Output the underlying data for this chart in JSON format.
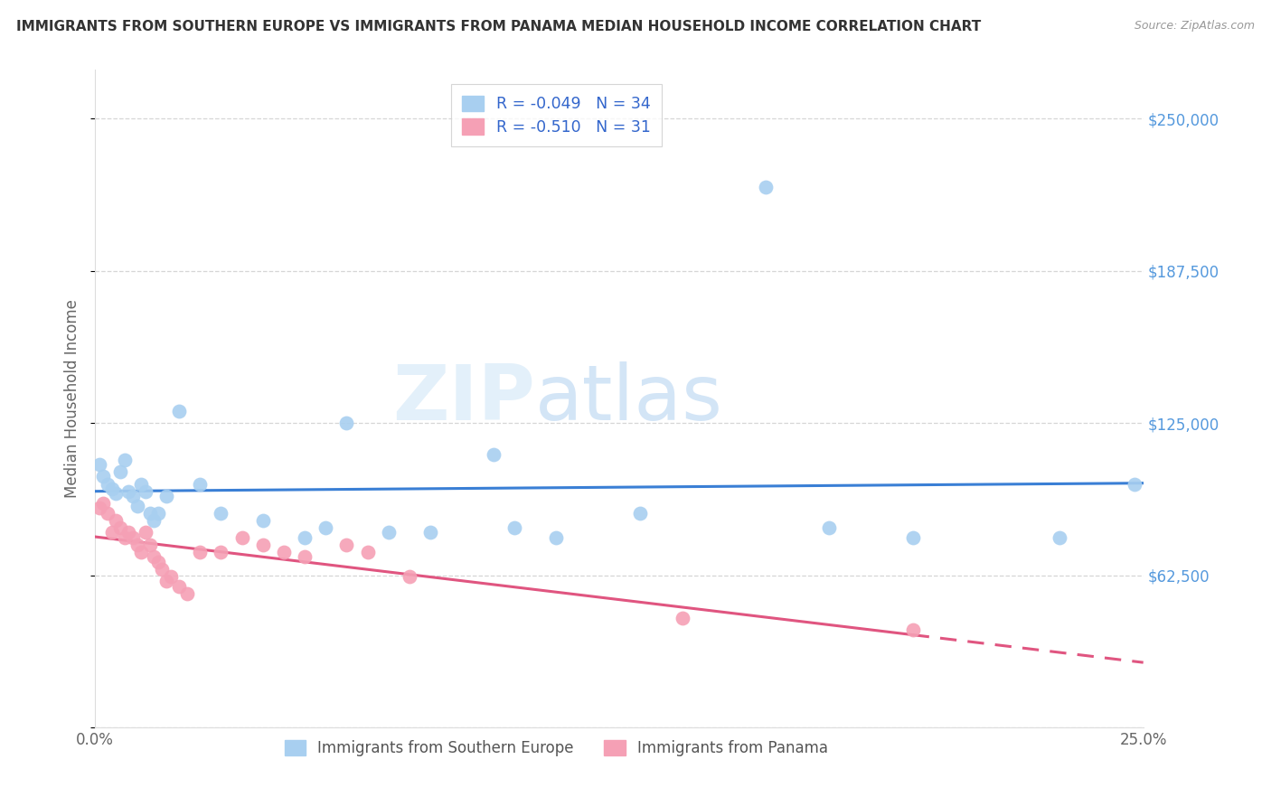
{
  "title": "IMMIGRANTS FROM SOUTHERN EUROPE VS IMMIGRANTS FROM PANAMA MEDIAN HOUSEHOLD INCOME CORRELATION CHART",
  "source": "Source: ZipAtlas.com",
  "ylabel": "Median Household Income",
  "xlim": [
    0.0,
    0.25
  ],
  "ylim": [
    0,
    270000
  ],
  "yticks": [
    0,
    62500,
    125000,
    187500,
    250000
  ],
  "ytick_labels_right": [
    "",
    "$62,500",
    "$125,000",
    "$187,500",
    "$250,000"
  ],
  "xtick_left": "0.0%",
  "xtick_right": "25.0%",
  "blue_color": "#a8cff0",
  "pink_color": "#f5a0b5",
  "blue_line_color": "#3a7fd5",
  "pink_line_color": "#e05580",
  "watermark_zip": "ZIP",
  "watermark_atlas": "atlas",
  "blue_scatter_x": [
    0.001,
    0.002,
    0.003,
    0.004,
    0.005,
    0.006,
    0.007,
    0.008,
    0.009,
    0.01,
    0.011,
    0.012,
    0.013,
    0.014,
    0.015,
    0.017,
    0.02,
    0.025,
    0.03,
    0.04,
    0.05,
    0.055,
    0.06,
    0.07,
    0.08,
    0.095,
    0.1,
    0.11,
    0.13,
    0.16,
    0.175,
    0.195,
    0.23,
    0.248
  ],
  "blue_scatter_y": [
    108000,
    103000,
    100000,
    98000,
    96000,
    105000,
    110000,
    97000,
    95000,
    91000,
    100000,
    97000,
    88000,
    85000,
    88000,
    95000,
    130000,
    100000,
    88000,
    85000,
    78000,
    82000,
    125000,
    80000,
    80000,
    112000,
    82000,
    78000,
    88000,
    222000,
    82000,
    78000,
    78000,
    100000
  ],
  "pink_scatter_x": [
    0.001,
    0.002,
    0.003,
    0.004,
    0.005,
    0.006,
    0.007,
    0.008,
    0.009,
    0.01,
    0.011,
    0.012,
    0.013,
    0.014,
    0.015,
    0.016,
    0.017,
    0.018,
    0.02,
    0.022,
    0.025,
    0.03,
    0.035,
    0.04,
    0.045,
    0.05,
    0.06,
    0.065,
    0.075,
    0.14,
    0.195
  ],
  "pink_scatter_y": [
    90000,
    92000,
    88000,
    80000,
    85000,
    82000,
    78000,
    80000,
    78000,
    75000,
    72000,
    80000,
    75000,
    70000,
    68000,
    65000,
    60000,
    62000,
    58000,
    55000,
    72000,
    72000,
    78000,
    75000,
    72000,
    70000,
    75000,
    72000,
    62000,
    45000,
    40000
  ],
  "background_color": "#ffffff",
  "grid_color": "#cccccc",
  "legend_r1": "R = -0.049",
  "legend_n1": "N = 34",
  "legend_r2": "R = -0.510",
  "legend_n2": "N = 31"
}
